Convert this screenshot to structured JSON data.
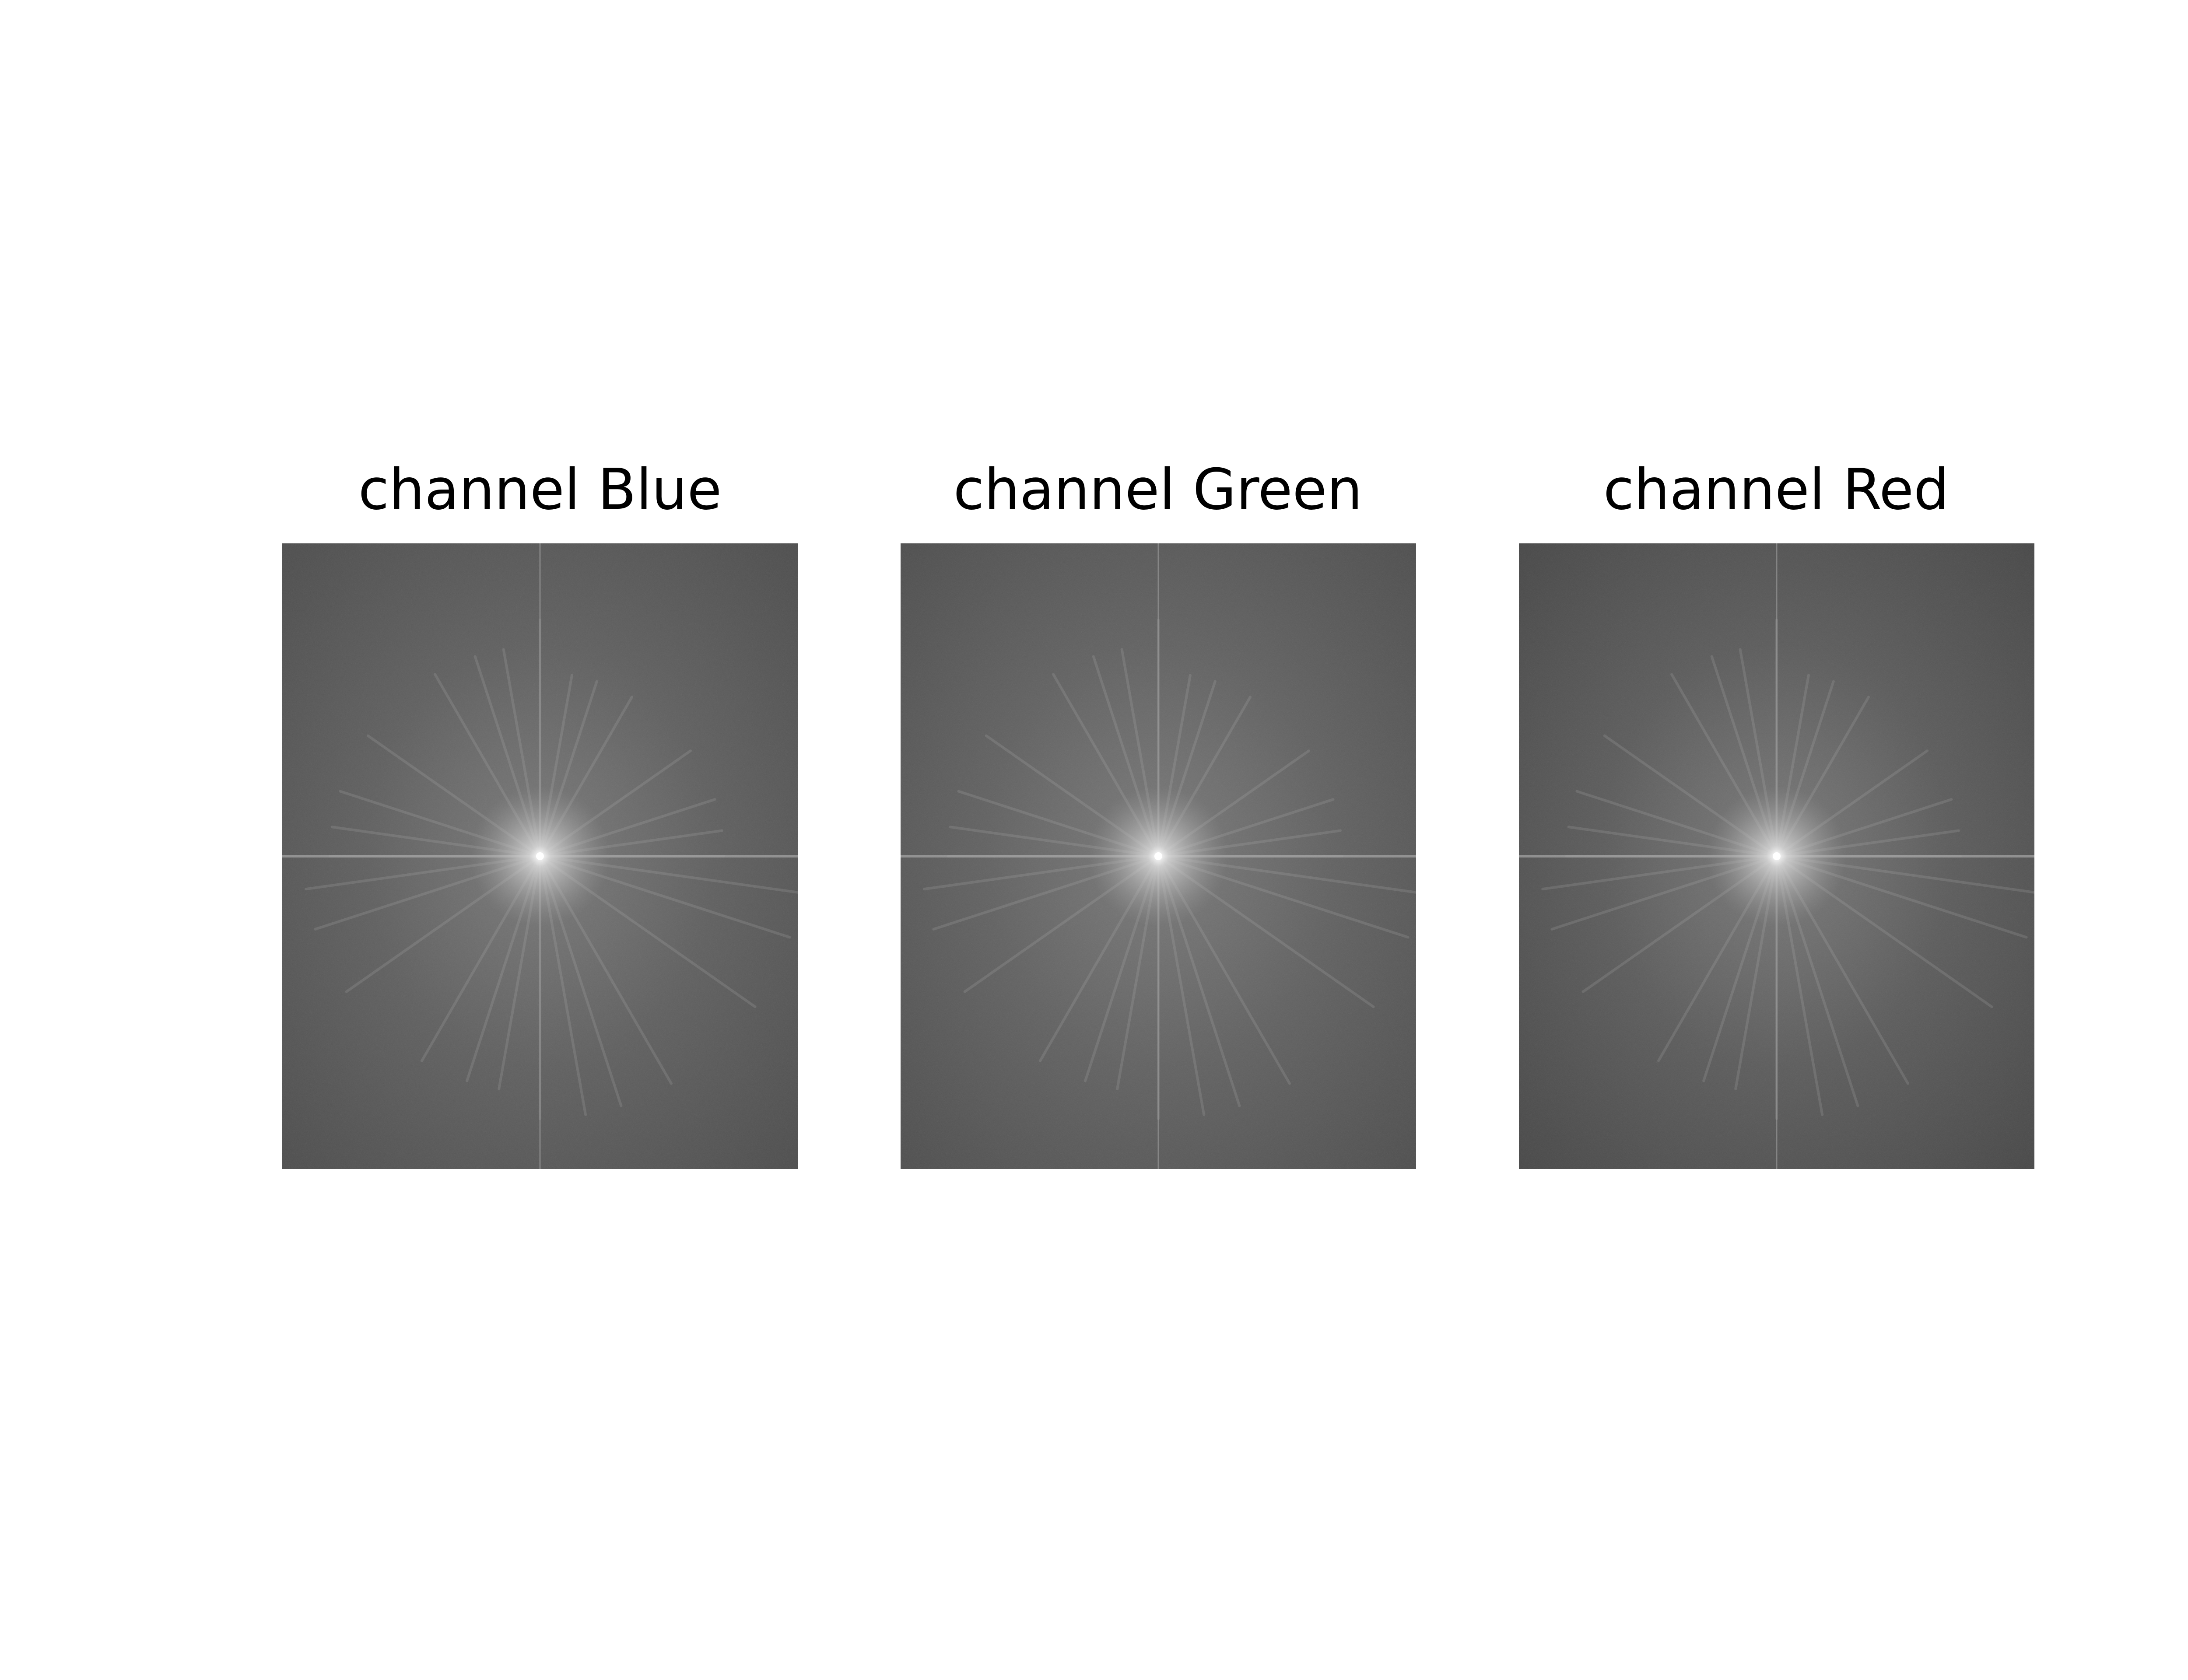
{
  "figure": {
    "background": "#ffffff",
    "panels": [
      {
        "title": "channel Blue",
        "spectrum_shade": "#5f5f5f",
        "edge_shade": "#4a4a4a"
      },
      {
        "title": "channel Green",
        "spectrum_shade": "#616161",
        "edge_shade": "#4b4b4b"
      },
      {
        "title": "channel Red",
        "spectrum_shade": "#5b5b5b",
        "edge_shade": "#444444"
      }
    ]
  }
}
